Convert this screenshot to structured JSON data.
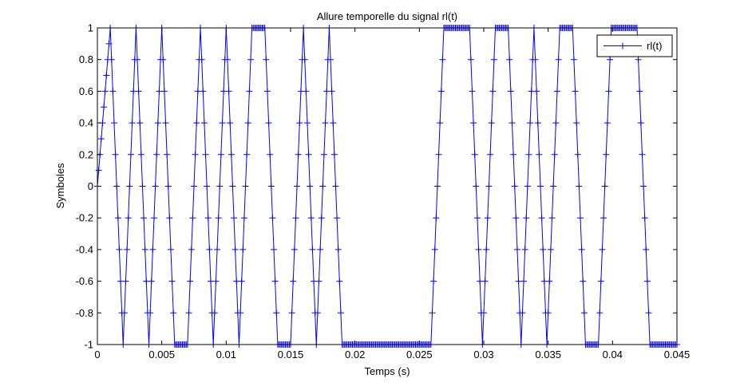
{
  "chart_data": {
    "type": "line",
    "title": "Allure temporelle du signal rl(t)",
    "xlabel": "Temps (s)",
    "ylabel": "Symboles",
    "xlim": [
      0,
      0.045
    ],
    "ylim": [
      -1,
      1
    ],
    "x_ticks": [
      0,
      0.005,
      0.01,
      0.015,
      0.02,
      0.025,
      0.03,
      0.035,
      0.04,
      0.045
    ],
    "x_tick_labels": [
      "0",
      "0.005",
      "0.01",
      "0.015",
      "0.02",
      "0.025",
      "0.03",
      "0.035",
      "0.04",
      "0.045"
    ],
    "y_ticks": [
      -1,
      -0.8,
      -0.6,
      -0.4,
      -0.2,
      0,
      0.2,
      0.4,
      0.6,
      0.8,
      1
    ],
    "y_tick_labels": [
      "-1",
      "-0.8",
      "-0.6",
      "-0.4",
      "-0.2",
      "0",
      "0.2",
      "0.4",
      "0.6",
      "0.8",
      "1"
    ],
    "grid": false,
    "legend_position": "top-right",
    "line_color": "#0000ff",
    "marker": "+",
    "sample_step": 0.0001,
    "series": [
      {
        "name": "rl(t)",
        "segments": [
          [
            0.0,
            0
          ],
          [
            0.001,
            1
          ],
          [
            0.002,
            -1
          ],
          [
            0.003,
            1
          ],
          [
            0.004,
            -1
          ],
          [
            0.005,
            1
          ],
          [
            0.006,
            -1
          ],
          [
            0.007,
            -1
          ],
          [
            0.008,
            1
          ],
          [
            0.009,
            -1
          ],
          [
            0.01,
            1
          ],
          [
            0.011,
            -1
          ],
          [
            0.012,
            1
          ],
          [
            0.013,
            1
          ],
          [
            0.014,
            -1
          ],
          [
            0.015,
            -1
          ],
          [
            0.016,
            1
          ],
          [
            0.017,
            -1
          ],
          [
            0.018,
            1
          ],
          [
            0.019,
            -1
          ],
          [
            0.0259,
            -1
          ],
          [
            0.0269,
            1
          ],
          [
            0.0289,
            1
          ],
          [
            0.0299,
            -1
          ],
          [
            0.0309,
            1
          ],
          [
            0.0319,
            1
          ],
          [
            0.0329,
            -1
          ],
          [
            0.0339,
            1
          ],
          [
            0.0349,
            -1
          ],
          [
            0.0359,
            1
          ],
          [
            0.0369,
            1
          ],
          [
            0.0379,
            -1
          ],
          [
            0.0389,
            -1
          ],
          [
            0.0399,
            1
          ],
          [
            0.0419,
            1
          ],
          [
            0.0429,
            -1
          ],
          [
            0.045,
            -1
          ]
        ]
      }
    ]
  }
}
